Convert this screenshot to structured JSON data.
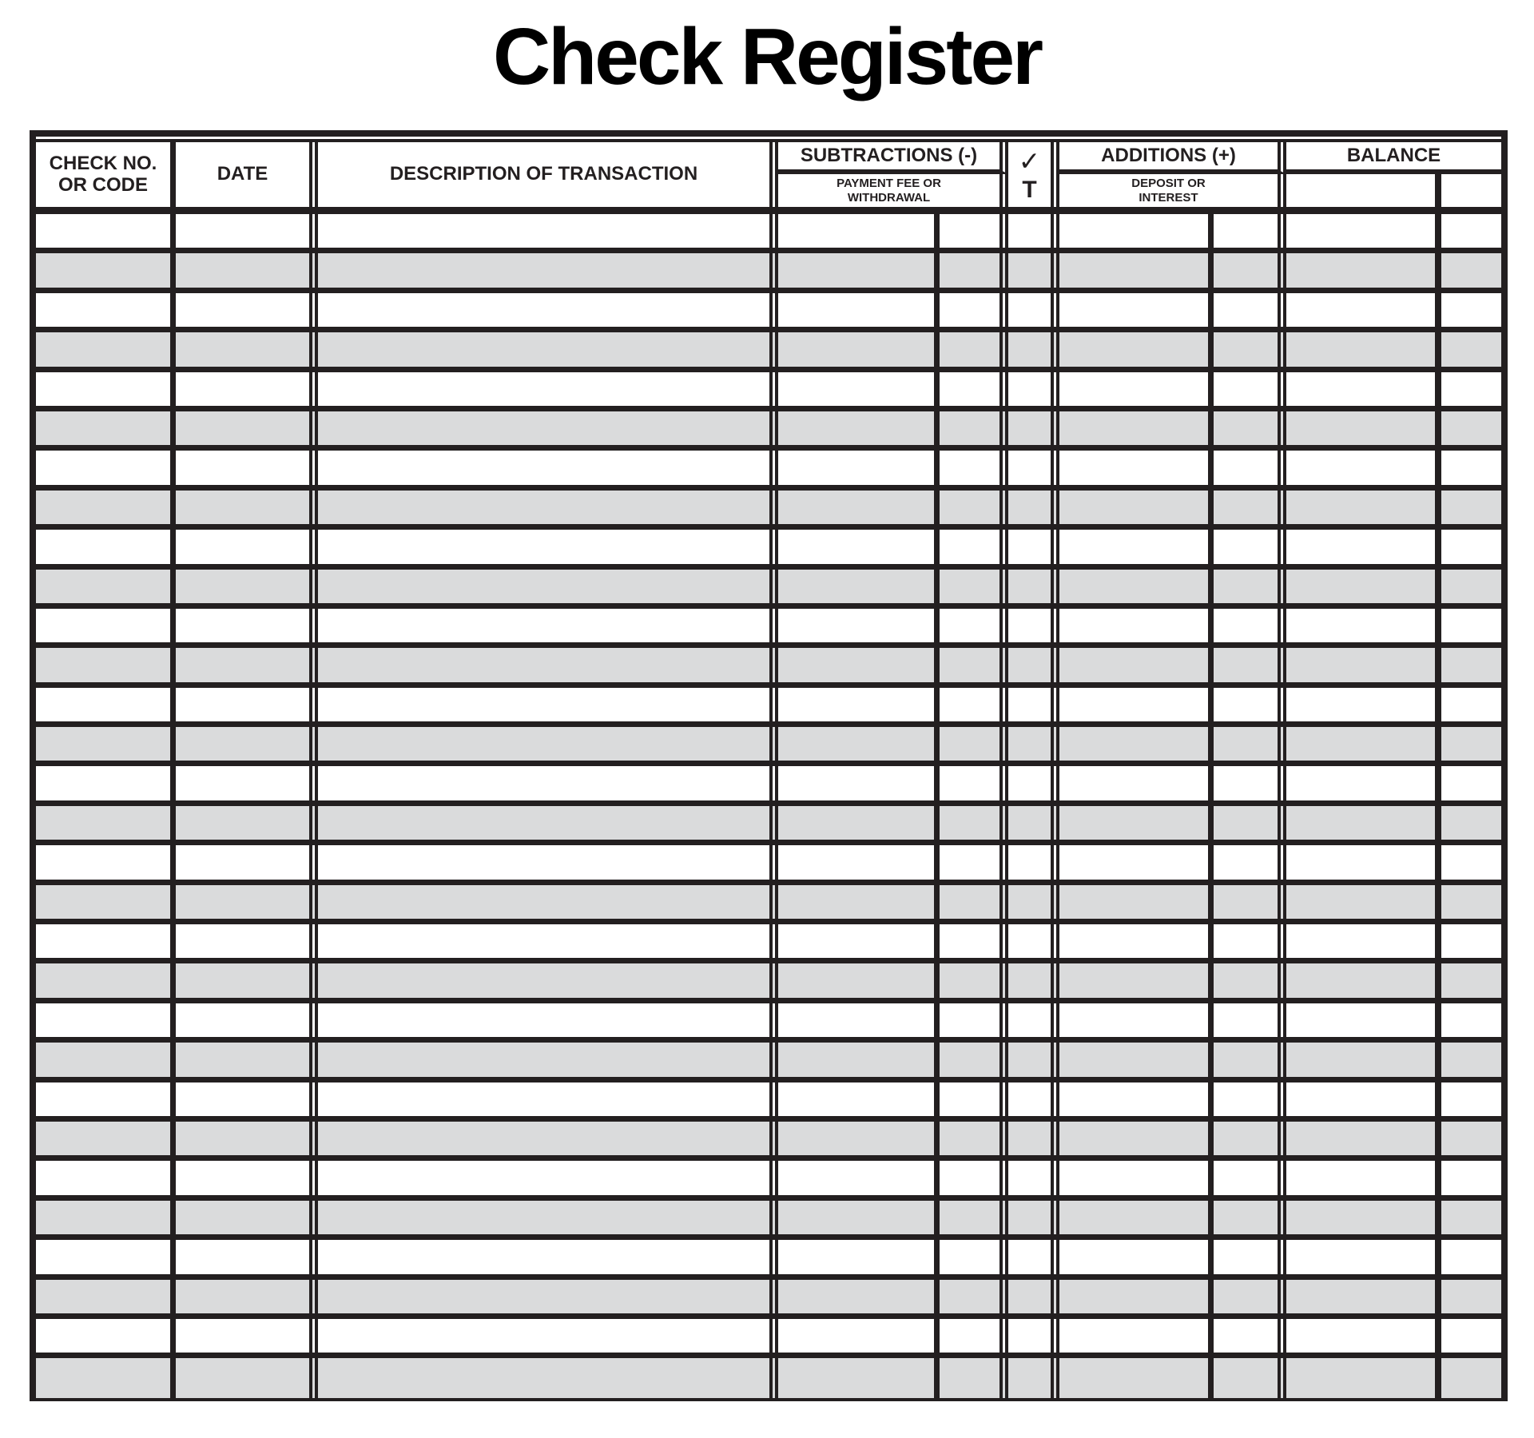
{
  "title": "Check Register",
  "table": {
    "columns": {
      "check_no": "CHECK NO.\nOR CODE",
      "date": "DATE",
      "description": "DESCRIPTION OF TRANSACTION",
      "balance": "BALANCE"
    },
    "subtractions": {
      "label": "SUBTRACTIONS (-)",
      "sublabel": "PAYMENT FEE OR\nWITHDRAWAL"
    },
    "check_column": {
      "check_symbol": "✓",
      "t_label": "T"
    },
    "additions": {
      "label": "ADDITIONS (+)",
      "sublabel": "DEPOSIT OR\nINTEREST"
    },
    "body": {
      "row_count": 30
    }
  },
  "colors": {
    "line": "#231f20",
    "alt_row": "#dadbdc",
    "title": "#000000"
  }
}
